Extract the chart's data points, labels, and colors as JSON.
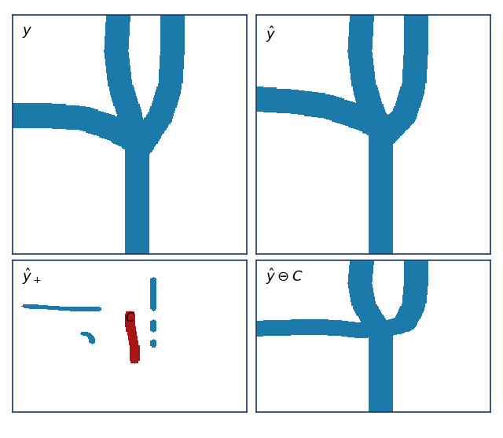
{
  "fig_width": 6.4,
  "fig_height": 5.57,
  "dpi": 100,
  "bg_color": "#ffffff",
  "vessel_color": "#1b7aaa",
  "red_color": "#aa1515",
  "border_color": "#1a3a6e",
  "border_lw": 1.2,
  "label_fontsize": 13,
  "labels": [
    "$y$",
    "$\\hat{y}$",
    "$\\hat{y}_+$",
    "$\\hat{y} \\ominus C$"
  ]
}
